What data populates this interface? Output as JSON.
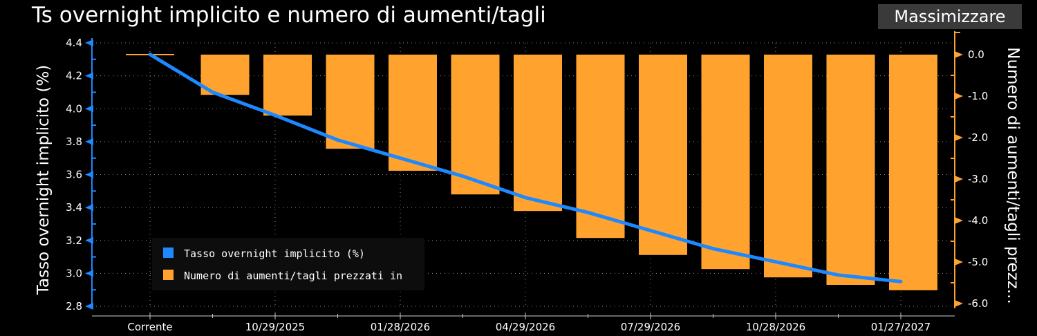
{
  "header": {
    "title": "Ts overnight implicito e numero di aumenti/tagli",
    "maximize_label": "Massimizzare"
  },
  "colors": {
    "background": "#000000",
    "bars": "#ffa32e",
    "line": "#1e88ff",
    "left_axis": "#1e88ff",
    "right_axis": "#ffa32e",
    "grid": "#8a8a8a"
  },
  "chart_data": {
    "type": "bar+line",
    "categories": [
      "Corrente",
      "",
      "10/29/2025",
      "",
      "01/28/2026",
      "",
      "04/29/2026",
      "",
      "07/29/2026",
      "",
      "10/28/2026",
      "",
      "01/27/2027"
    ],
    "x_tick_labels": [
      "Corrente",
      "10/29/2025",
      "01/28/2026",
      "04/29/2026",
      "07/29/2026",
      "10/28/2026",
      "01/27/2027"
    ],
    "series": [
      {
        "name": "Tasso overnight implicito (%)",
        "type": "line",
        "axis": "left",
        "x": [
          0,
          1,
          2,
          3,
          4,
          5,
          6,
          7,
          8,
          9,
          10,
          11,
          12
        ],
        "values": [
          4.33,
          4.1,
          3.96,
          3.81,
          3.7,
          3.59,
          3.46,
          3.37,
          3.26,
          3.15,
          3.07,
          2.99,
          2.95
        ],
        "x_fine": [
          0,
          1,
          2,
          3,
          4,
          5,
          6,
          7,
          8,
          9,
          10,
          11,
          12
        ]
      },
      {
        "name": "Numero di aumenti/tagli prezzati in",
        "type": "bar",
        "axis": "right",
        "values": [
          0.0,
          -0.97,
          -1.47,
          -2.27,
          -2.8,
          -3.37,
          -3.77,
          -4.42,
          -4.83,
          -5.17,
          -5.37,
          -5.55,
          -5.68
        ]
      }
    ],
    "left_axis": {
      "label": "Tasso overnight implicito (%)",
      "min": 2.8,
      "max": 4.4,
      "ticks": [
        "4.4",
        "4.2",
        "4.0",
        "3.8",
        "3.6",
        "3.4",
        "3.2",
        "3.0",
        "2.8"
      ]
    },
    "right_axis": {
      "label": "Numero di aumenti/tagli prezz...",
      "min": -6.0,
      "max": 0.0,
      "ticks": [
        "0.0",
        "-1.0",
        "-2.0",
        "-3.0",
        "-4.0",
        "-5.0",
        "-6.0"
      ]
    },
    "grid": true,
    "legend": {
      "placement": "bottom-left",
      "entries": [
        "Tasso overnight implicito (%)",
        "Numero di aumenti/tagli prezzati in"
      ]
    }
  }
}
